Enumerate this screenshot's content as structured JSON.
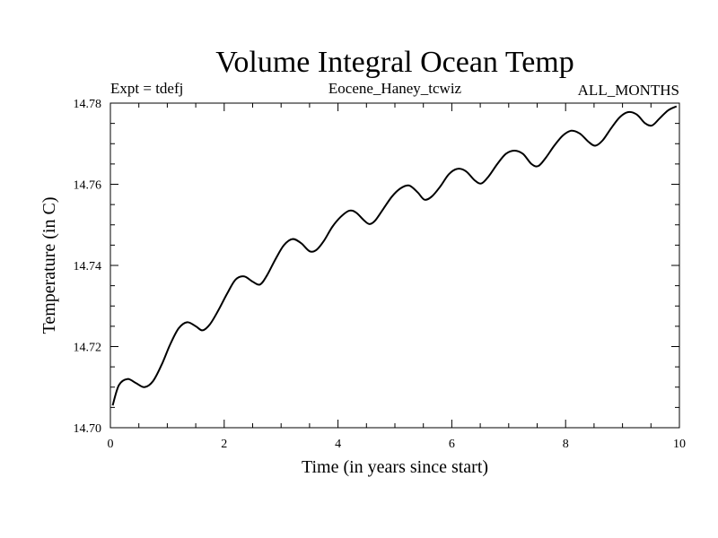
{
  "chart_data": {
    "type": "line",
    "title": "Volume Integral Ocean Temp",
    "subtitle_left": "Expt = tdefj",
    "subtitle_center": "Eocene_Haney_tcwiz",
    "subtitle_right": "ALL_MONTHS",
    "xlabel": "Time (in years since start)",
    "ylabel": "Temperature (in C)",
    "xlim": [
      0,
      10
    ],
    "ylim": [
      14.7,
      14.78
    ],
    "xticks": [
      0,
      2,
      4,
      6,
      8,
      10
    ],
    "xtick_labels": [
      "0",
      "2",
      "4",
      "6",
      "8",
      "10"
    ],
    "yticks": [
      14.7,
      14.72,
      14.74,
      14.76,
      14.78
    ],
    "ytick_labels": [
      "14.70",
      "14.72",
      "14.74",
      "14.76",
      "14.78"
    ],
    "grid": false,
    "line_color": "#000000",
    "series": [
      {
        "name": "Volume Integral Ocean Temp",
        "x": [
          0.04,
          0.15,
          0.3,
          0.45,
          0.6,
          0.75,
          0.9,
          1.05,
          1.2,
          1.35,
          1.5,
          1.62,
          1.75,
          1.9,
          2.05,
          2.2,
          2.35,
          2.5,
          2.63,
          2.75,
          2.9,
          3.05,
          3.2,
          3.35,
          3.5,
          3.62,
          3.75,
          3.9,
          4.05,
          4.2,
          4.32,
          4.45,
          4.55,
          4.65,
          4.8,
          4.95,
          5.1,
          5.25,
          5.4,
          5.52,
          5.65,
          5.8,
          5.95,
          6.1,
          6.25,
          6.4,
          6.52,
          6.65,
          6.8,
          6.95,
          7.1,
          7.25,
          7.4,
          7.52,
          7.65,
          7.8,
          7.95,
          8.1,
          8.25,
          8.4,
          8.52,
          8.65,
          8.8,
          8.95,
          9.1,
          9.25,
          9.4,
          9.52,
          9.65,
          9.8,
          9.95
        ],
        "y": [
          14.7055,
          14.7105,
          14.712,
          14.711,
          14.71,
          14.7115,
          14.7155,
          14.7205,
          14.7245,
          14.726,
          14.725,
          14.724,
          14.7255,
          14.729,
          14.733,
          14.7365,
          14.7373,
          14.736,
          14.7353,
          14.7375,
          14.7415,
          14.745,
          14.7465,
          14.7455,
          14.7435,
          14.7438,
          14.746,
          14.7495,
          14.752,
          14.7535,
          14.753,
          14.7512,
          14.7502,
          14.751,
          14.754,
          14.757,
          14.759,
          14.7597,
          14.758,
          14.7562,
          14.757,
          14.7595,
          14.7625,
          14.7638,
          14.7632,
          14.761,
          14.7602,
          14.762,
          14.765,
          14.7675,
          14.7683,
          14.7675,
          14.765,
          14.7645,
          14.7665,
          14.7695,
          14.772,
          14.7732,
          14.7725,
          14.7705,
          14.7695,
          14.7708,
          14.7738,
          14.7765,
          14.7778,
          14.7772,
          14.775,
          14.7745,
          14.7762,
          14.7782,
          14.7792
        ]
      }
    ]
  }
}
